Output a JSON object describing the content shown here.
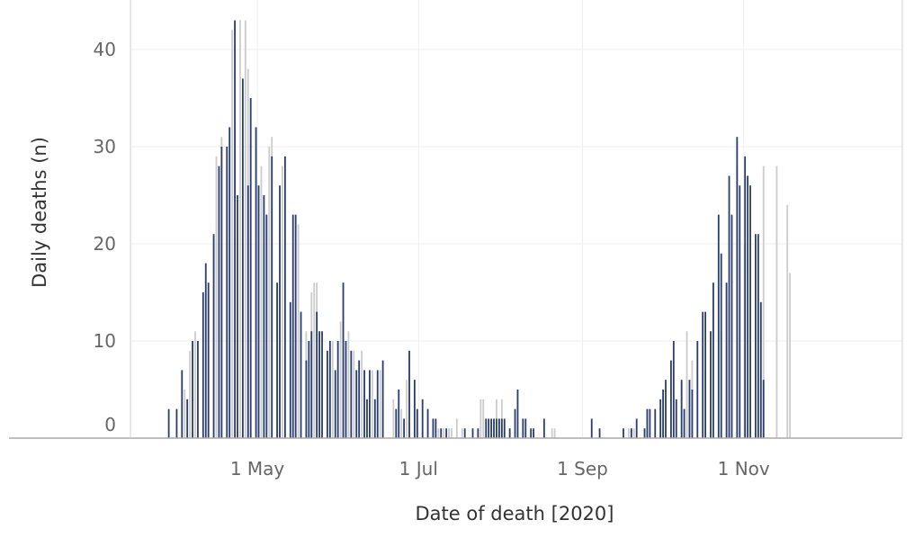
{
  "chart_data": {
    "type": "bar",
    "xlabel": "Date of death [2020]",
    "ylabel": "Daily deaths (n)",
    "ylim": [
      0,
      45
    ],
    "yticks": [
      0,
      10,
      20,
      30,
      40
    ],
    "xlim": [
      "2020-03-14",
      "2020-12-31"
    ],
    "xticks": [
      {
        "date": "2020-05-01",
        "label": "1 May"
      },
      {
        "date": "2020-07-01",
        "label": "1 Jul"
      },
      {
        "date": "2020-09-01",
        "label": "1 Sep"
      },
      {
        "date": "2020-11-01",
        "label": "1 Nov"
      }
    ],
    "grid": true,
    "colors": {
      "primary": "#2c3e6e",
      "secondary": "#cccccc",
      "grid": "#eeeeee",
      "axis": "#aaaaaa"
    },
    "start_date": "2020-03-14",
    "series": [
      {
        "values": [
          0,
          0,
          0,
          0,
          0,
          0,
          0,
          0,
          0,
          0,
          0,
          0,
          0,
          0,
          3,
          0,
          0,
          3,
          0,
          7,
          0,
          4,
          0,
          10,
          0,
          10,
          0,
          15,
          18,
          16,
          0,
          21,
          0,
          28,
          30,
          0,
          30,
          32,
          0,
          43,
          25,
          0,
          37,
          0,
          26,
          35,
          0,
          32,
          26,
          0,
          25,
          23,
          0,
          29,
          0,
          16,
          26,
          0,
          29,
          0,
          14,
          23,
          23,
          0,
          13,
          0,
          8,
          10,
          11,
          0,
          13,
          11,
          11,
          0,
          9,
          10,
          0,
          7,
          10,
          0,
          16,
          10,
          0,
          9,
          0,
          7,
          8,
          0,
          7,
          4,
          7,
          0,
          4,
          7,
          0,
          8,
          0,
          0,
          0,
          0,
          3,
          5,
          0,
          2,
          0,
          9,
          0,
          6,
          3,
          0,
          4,
          0,
          3,
          0,
          2,
          2,
          0,
          1,
          0,
          1,
          0,
          0,
          0,
          0,
          0,
          0,
          1,
          0,
          0,
          1,
          0,
          1,
          0,
          0,
          2,
          2,
          2,
          2,
          2,
          2,
          2,
          2,
          0,
          1,
          0,
          3,
          5,
          0,
          2,
          2,
          0,
          1,
          1,
          0,
          0,
          0,
          2,
          0,
          0,
          0,
          0,
          0,
          0,
          0,
          0,
          0,
          0,
          0,
          0,
          0,
          0,
          0,
          0,
          0,
          2,
          0,
          0,
          1,
          0,
          0,
          0,
          0,
          0,
          0,
          0,
          0,
          1,
          0,
          0,
          1,
          0,
          2,
          0,
          0,
          1,
          3,
          3,
          0,
          3,
          0,
          4,
          5,
          6,
          0,
          8,
          10,
          4,
          0,
          6,
          3,
          0,
          6,
          5,
          0,
          10,
          0,
          13,
          13,
          0,
          11,
          16,
          0,
          23,
          19,
          0,
          16,
          27,
          23,
          0,
          31,
          26,
          0,
          29,
          27,
          26,
          0,
          21,
          21,
          14,
          6
        ]
      },
      {
        "values": [
          0,
          0,
          0,
          0,
          0,
          0,
          0,
          0,
          0,
          0,
          0,
          0,
          0,
          0,
          0,
          0,
          0,
          0,
          0,
          0,
          5,
          0,
          9,
          0,
          11,
          0,
          0,
          0,
          0,
          0,
          0,
          0,
          29,
          0,
          31,
          0,
          0,
          0,
          42,
          0,
          0,
          43,
          0,
          43,
          38,
          0,
          0,
          0,
          0,
          28,
          0,
          0,
          30,
          31,
          0,
          0,
          0,
          28,
          0,
          0,
          0,
          0,
          0,
          22,
          0,
          0,
          11,
          0,
          15,
          16,
          16,
          0,
          0,
          0,
          0,
          0,
          10,
          0,
          0,
          12,
          0,
          0,
          11,
          0,
          9,
          0,
          0,
          9,
          0,
          0,
          0,
          7,
          0,
          0,
          7,
          0,
          0,
          0,
          0,
          4,
          0,
          0,
          3,
          0,
          6,
          0,
          0,
          0,
          0,
          0,
          0,
          0,
          0,
          0,
          0,
          0,
          1,
          0,
          1,
          0,
          1,
          1,
          0,
          2,
          0,
          1,
          0,
          0,
          0,
          0,
          0,
          0,
          4,
          4,
          0,
          0,
          0,
          0,
          4,
          0,
          4,
          0,
          0,
          0,
          0,
          0,
          0,
          0,
          0,
          0,
          0,
          0,
          0,
          0,
          0,
          0,
          0,
          0,
          0,
          1,
          1,
          0,
          0,
          0,
          0,
          0,
          0,
          0,
          0,
          0,
          0,
          0,
          0,
          0,
          0,
          0,
          0,
          0,
          0,
          0,
          0,
          0,
          0,
          0,
          0,
          0,
          0,
          0,
          1,
          1,
          1,
          0,
          0,
          0,
          0,
          0,
          0,
          0,
          0,
          0,
          0,
          0,
          0,
          0,
          0,
          0,
          0,
          0,
          0,
          0,
          11,
          0,
          8,
          0,
          0,
          0,
          0,
          7,
          0,
          0,
          0,
          0,
          0,
          11,
          0,
          0,
          14,
          0,
          0,
          28,
          0,
          0,
          20,
          0,
          0,
          0,
          0,
          0,
          0,
          28,
          0,
          0,
          0,
          0,
          28,
          0,
          0,
          0,
          24,
          17,
          0
        ]
      }
    ]
  }
}
